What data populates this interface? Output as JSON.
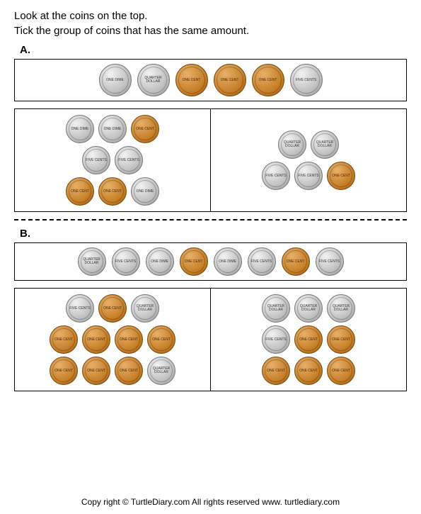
{
  "instructions": {
    "line1": "Look at the coins on the top.",
    "line2": "Tick the group of coins that has the same amount."
  },
  "coin_types": {
    "dime": {
      "color": "silver",
      "label": "ONE DIME"
    },
    "quarter": {
      "color": "silver",
      "label": "QUARTER DOLLAR"
    },
    "nickel": {
      "color": "silver",
      "label": "FIVE CENTS"
    },
    "penny": {
      "color": "copper",
      "label": "ONE CENT"
    }
  },
  "sections": [
    {
      "label": "A.",
      "top": [
        "dime",
        "quarter",
        "penny",
        "penny",
        "penny",
        "nickel"
      ],
      "left": [
        [
          "dime",
          "dime",
          "penny"
        ],
        [
          "nickel",
          "nickel"
        ],
        [
          "penny",
          "penny",
          "dime"
        ]
      ],
      "right": [
        [
          "quarter",
          "quarter"
        ],
        [
          "nickel",
          "nickel",
          "penny"
        ]
      ]
    },
    {
      "label": "B.",
      "top": [
        "quarter",
        "nickel",
        "dime",
        "penny",
        "dime",
        "nickel",
        "penny",
        "nickel"
      ],
      "left": [
        [
          "nickel",
          "penny",
          "quarter"
        ],
        [
          "penny",
          "penny",
          "penny",
          "penny"
        ],
        [
          "penny",
          "penny",
          "penny",
          "quarter"
        ]
      ],
      "right": [
        [
          "quarter",
          "quarter",
          "quarter"
        ],
        [
          "nickel",
          "penny",
          "penny"
        ],
        [
          "penny",
          "penny",
          "penny"
        ]
      ]
    }
  ],
  "footer": "Copy right © TurtleDiary.com  All rights reserved   www. turtlediary.com"
}
